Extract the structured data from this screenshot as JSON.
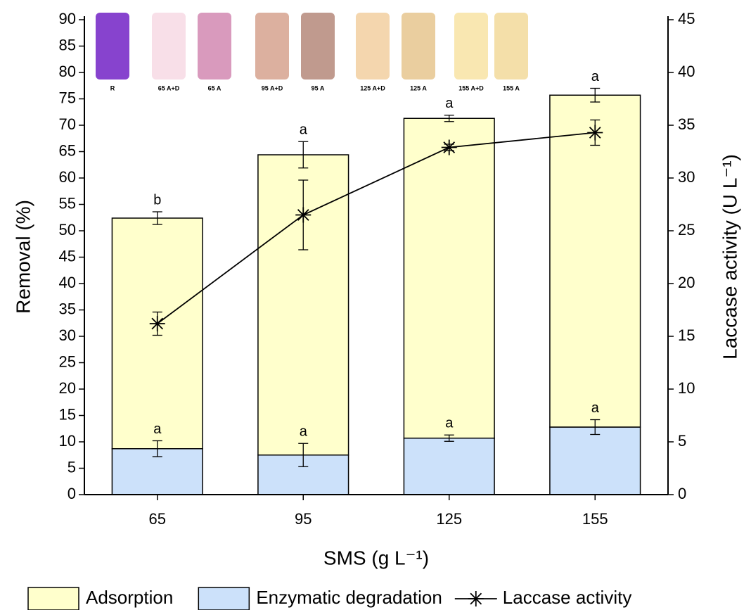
{
  "chart_data": {
    "type": "bar",
    "x_label": "SMS (g L⁻¹)",
    "y_label": "Removal (%)",
    "y2_label": "Laccase activity (U L⁻¹)",
    "categories": [
      "65",
      "95",
      "125",
      "155"
    ],
    "ylim": [
      0,
      90
    ],
    "yticks": [
      0,
      5,
      10,
      15,
      20,
      25,
      30,
      35,
      40,
      45,
      50,
      55,
      60,
      65,
      70,
      75,
      80,
      85,
      90
    ],
    "y2lim": [
      0,
      45
    ],
    "y2ticks": [
      0,
      5,
      10,
      15,
      20,
      25,
      30,
      35,
      40,
      45
    ],
    "series": [
      {
        "name": "Adsorption",
        "color": "#ffffcc",
        "values": [
          43.7,
          56.9,
          60.6,
          62.9
        ],
        "errors": [
          1.2,
          2.5,
          0.6,
          1.3
        ],
        "letters": [
          "b",
          "a",
          "a",
          "a"
        ]
      },
      {
        "name": "Enzymatic degradation",
        "color": "#cce1fa",
        "values": [
          8.7,
          7.5,
          10.7,
          12.8
        ],
        "errors": [
          1.5,
          2.2,
          0.6,
          1.4
        ],
        "letters": [
          "a",
          "a",
          "a",
          "a"
        ]
      },
      {
        "name": "Laccase activity",
        "type": "line",
        "axis": "y2",
        "color": "#000000",
        "marker": "asterisk",
        "values": [
          16.2,
          26.5,
          32.9,
          34.3
        ],
        "errors": [
          1.1,
          3.3,
          0.3,
          1.2
        ]
      }
    ],
    "photo": {
      "labels": [
        "R",
        "65 A+D",
        "65 A",
        "95 A+D",
        "95 A",
        "125 A+D",
        "125 A",
        "155 A+D",
        "155 A"
      ],
      "colors": [
        "#7a2fc9",
        "#f7dce6",
        "#d58fb6",
        "#d8a795",
        "#b98f82",
        "#f3d2a5",
        "#e8c995",
        "#f8e4a8",
        "#f3dca0"
      ]
    }
  }
}
